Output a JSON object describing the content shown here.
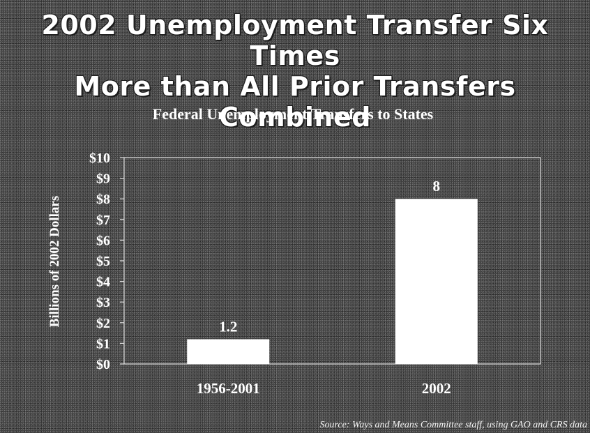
{
  "headline": {
    "line1": "2002 Unemployment Transfer Six Times",
    "line2": "More than All Prior Transfers Combined"
  },
  "source": "Source: Ways and Means Committee staff, using GAO and CRS data",
  "colors": {
    "bar": "#ffffff",
    "text": "#ffffff",
    "axis": "#e0e0e0"
  },
  "chart_data": {
    "type": "bar",
    "title": "Federal Unemployment Transfers to States",
    "ylabel": "Billions of 2002 Dollars",
    "xlabel": "",
    "categories": [
      "1956-2001",
      "2002"
    ],
    "values": [
      1.2,
      8
    ],
    "value_labels": [
      "1.2",
      "8"
    ],
    "ylim": [
      0,
      10
    ],
    "yticks": [
      0,
      1,
      2,
      3,
      4,
      5,
      6,
      7,
      8,
      9,
      10
    ],
    "ytick_labels": [
      "$0",
      "$1",
      "$2",
      "$3",
      "$4",
      "$5",
      "$6",
      "$7",
      "$8",
      "$9",
      "$10"
    ],
    "grid": false,
    "legend": "none"
  }
}
